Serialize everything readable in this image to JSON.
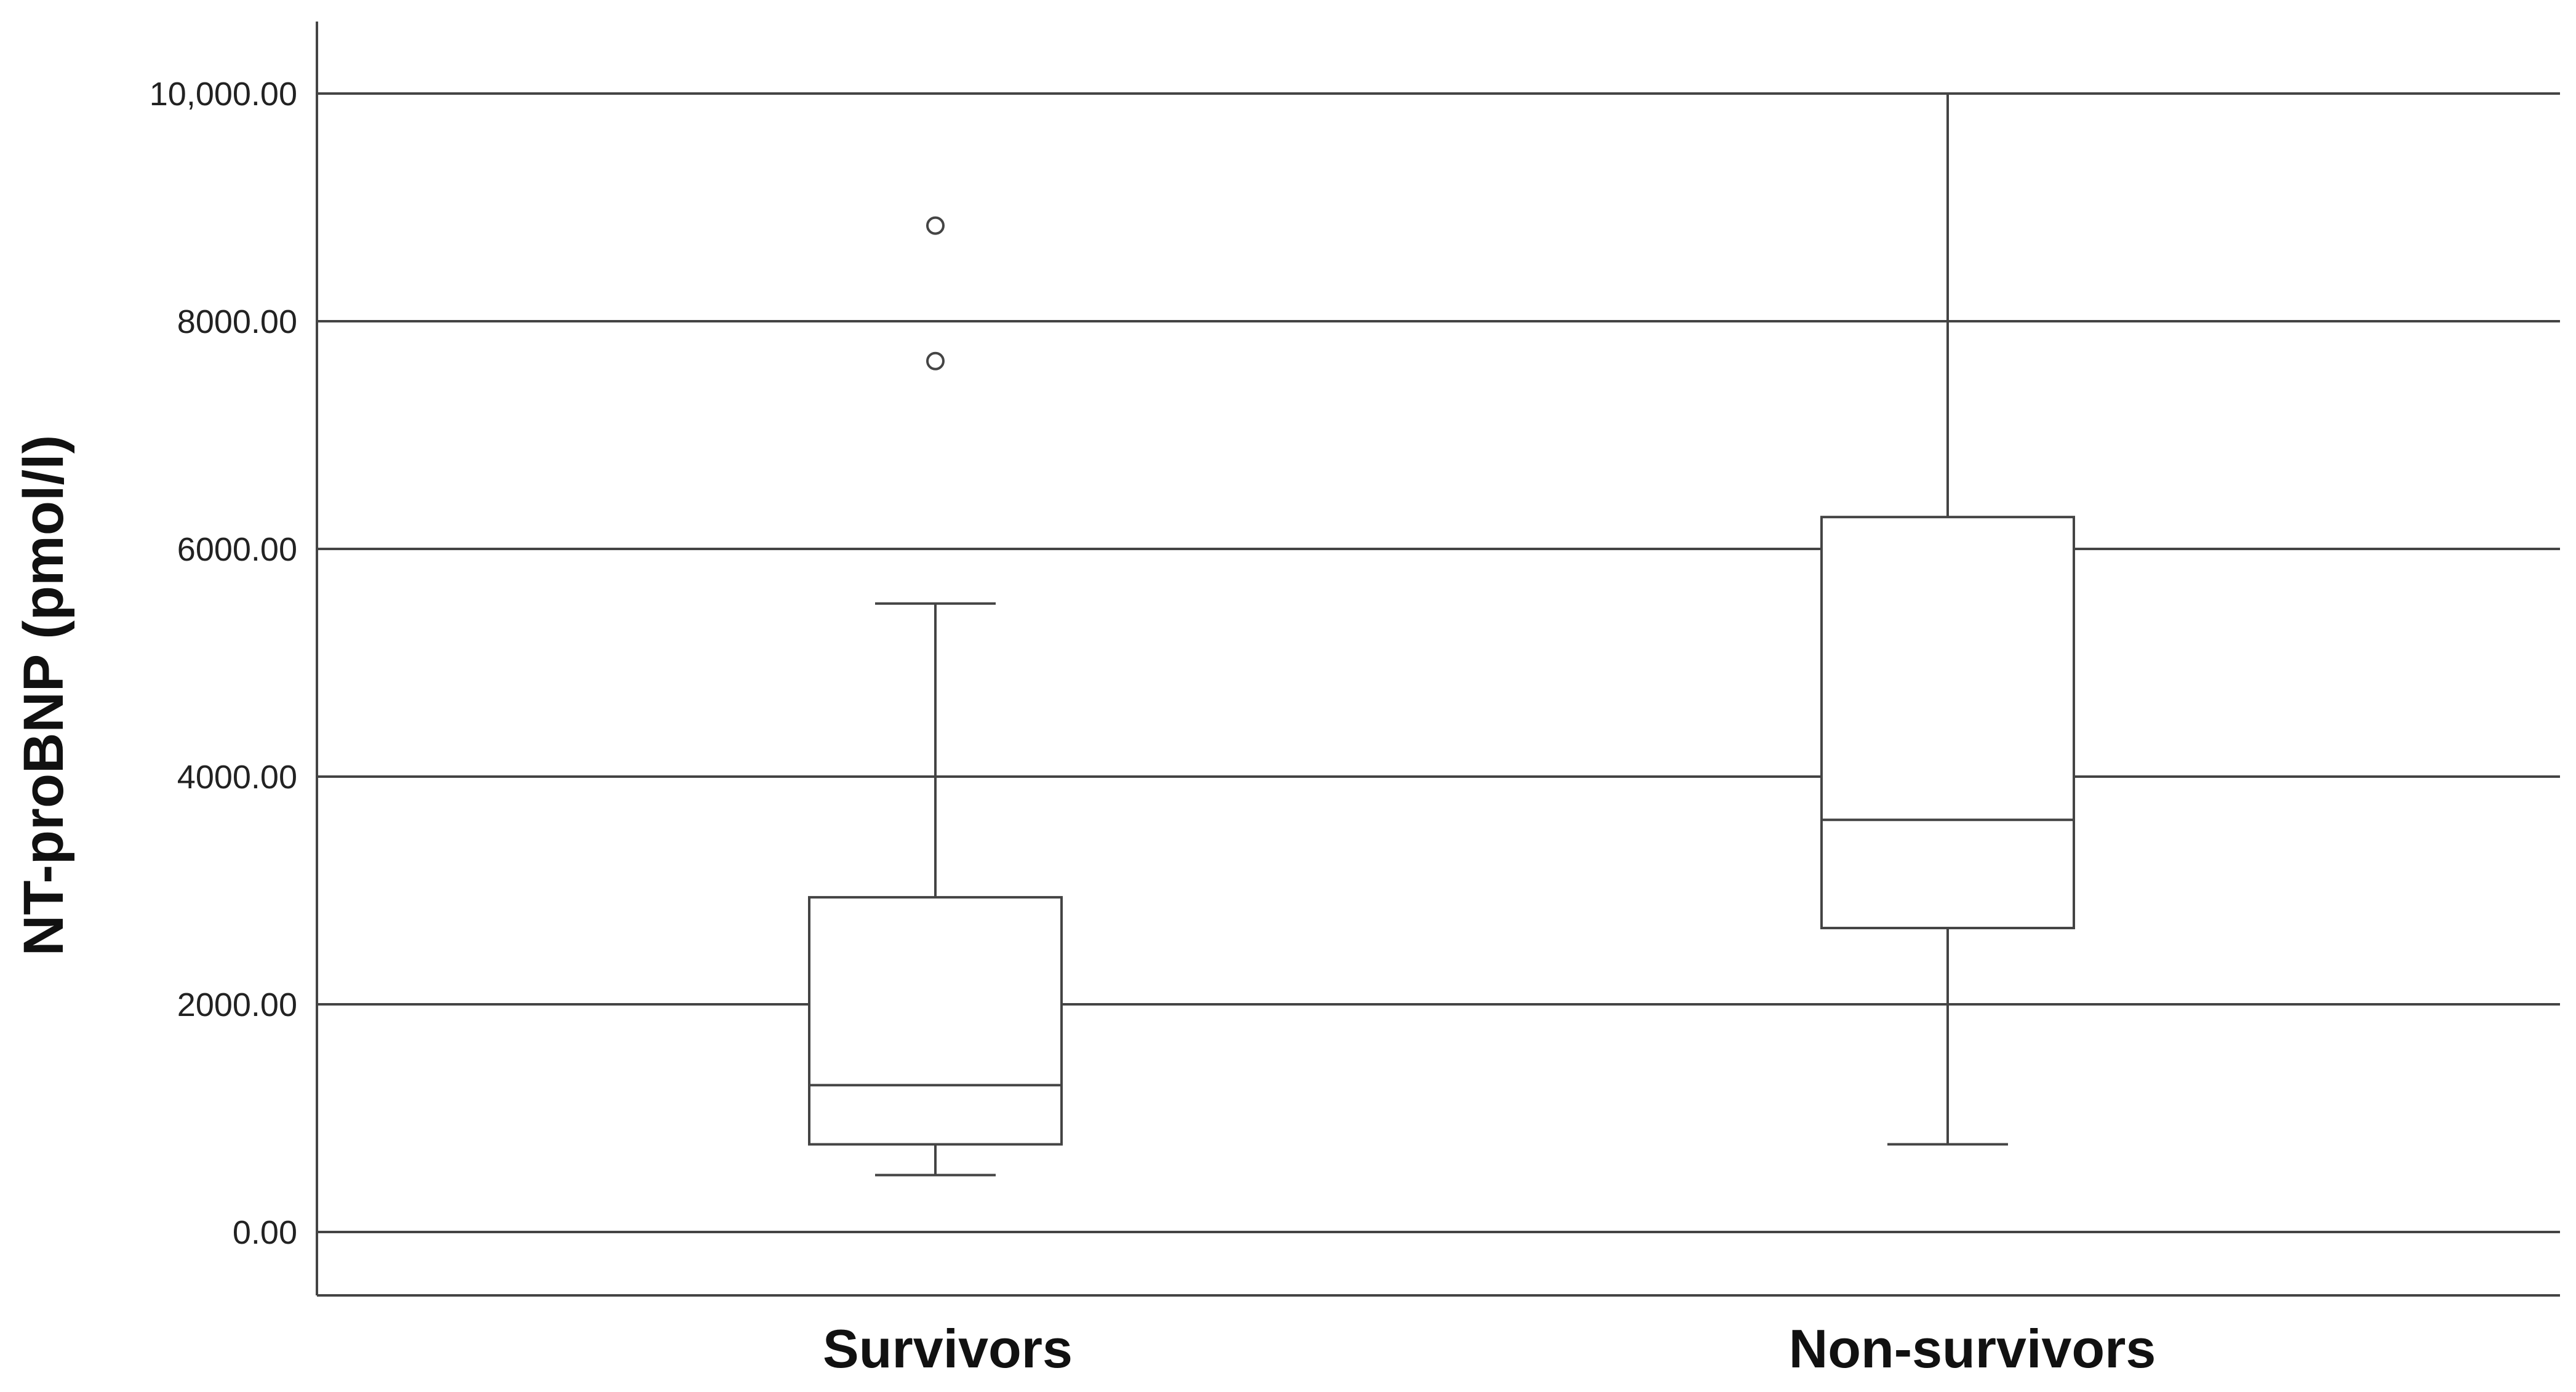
{
  "chart_data": {
    "type": "box",
    "ylabel": "NT-proBNP (pmol/l)",
    "xlabel": "",
    "ylim": [
      -550,
      10600
    ],
    "yticks": [
      {
        "value": 0,
        "label": "0.00"
      },
      {
        "value": 2000,
        "label": "2000.00"
      },
      {
        "value": 4000,
        "label": "4000.00"
      },
      {
        "value": 6000,
        "label": "6000.00"
      },
      {
        "value": 8000,
        "label": "8000.00"
      },
      {
        "value": 10000,
        "label": "10,000.00"
      }
    ],
    "grid": "horizontal",
    "categories": [
      "Survivors",
      "Non-survivors"
    ],
    "boxes": [
      {
        "category": "Survivors",
        "whisker_low": 500,
        "q1": 770,
        "median": 1290,
        "q3": 2940,
        "whisker_high": 5520,
        "outliers": [
          7650,
          8840
        ]
      },
      {
        "category": "Non-survivors",
        "whisker_low": 770,
        "q1": 2670,
        "median": 3620,
        "q3": 6280,
        "whisker_high": 10000,
        "outliers": []
      }
    ],
    "colors": {
      "line": "#444444",
      "grid": "#444444",
      "box_fill": "#ffffff"
    }
  }
}
